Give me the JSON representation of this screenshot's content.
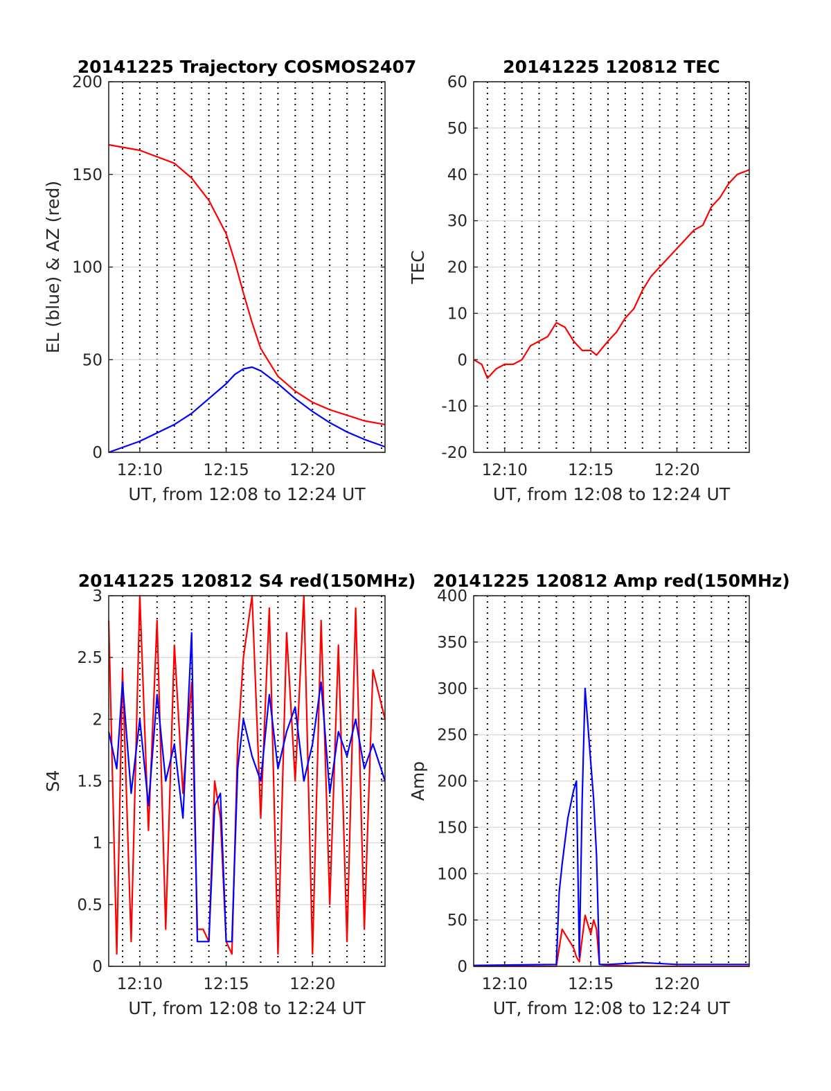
{
  "chart_data": [
    {
      "type": "line",
      "title": "20141225 Trajectory COSMOS2407",
      "xlabel": "UT, from 12:08 to 12:24 UT",
      "ylabel": "EL (blue) & AZ (red)",
      "xlim": [
        "12:08:12",
        "12:24:12"
      ],
      "ylim": [
        0,
        200
      ],
      "xticks": [
        "12:10",
        "12:15",
        "12:20"
      ],
      "yticks": [
        0,
        50,
        100,
        150,
        200
      ],
      "grid": true,
      "x": [
        "12:08:12",
        "12:10",
        "12:12",
        "12:13",
        "12:14",
        "12:15",
        "12:15:30",
        "12:16",
        "12:16:30",
        "12:17",
        "12:18",
        "12:19",
        "12:20",
        "12:21",
        "12:22",
        "12:23",
        "12:24:12"
      ],
      "series": [
        {
          "color": "#ff0000",
          "values": [
            166,
            163,
            156,
            148,
            136,
            118,
            103,
            86,
            70,
            56,
            41,
            33,
            27,
            23,
            20,
            17,
            15
          ]
        },
        {
          "color": "#0000ff",
          "values": [
            0,
            6,
            15,
            21,
            29,
            37,
            42,
            45,
            46,
            44,
            37,
            29,
            22,
            16,
            11,
            7,
            3
          ]
        }
      ]
    },
    {
      "type": "line",
      "title": "20141225 120812 TEC",
      "xlabel": "UT, from 12:08 to 12:24 UT",
      "ylabel": "TEC",
      "xlim": [
        "12:08:12",
        "12:24:12"
      ],
      "ylim": [
        -20,
        60
      ],
      "xticks": [
        "12:10",
        "12:15",
        "12:20"
      ],
      "yticks": [
        -20,
        -10,
        0,
        10,
        20,
        30,
        40,
        50,
        60
      ],
      "grid": true,
      "x": [
        "12:08:12",
        "12:08:40",
        "12:09",
        "12:09:30",
        "12:10",
        "12:10:30",
        "12:11",
        "12:11:30",
        "12:12",
        "12:12:30",
        "12:13",
        "12:13:30",
        "12:14",
        "12:14:30",
        "12:15",
        "12:15:20",
        "12:16",
        "12:16:30",
        "12:17",
        "12:17:30",
        "12:18",
        "12:18:30",
        "12:19",
        "12:19:30",
        "12:20",
        "12:20:30",
        "12:21",
        "12:21:30",
        "12:22",
        "12:22:30",
        "12:23",
        "12:23:30",
        "12:24:12"
      ],
      "series": [
        {
          "color": "#ff0000",
          "values": [
            0,
            -1,
            -4,
            -2,
            -1,
            -1,
            0,
            3,
            4,
            5,
            8,
            7,
            4,
            2,
            2,
            1,
            4,
            6,
            9,
            11,
            15,
            18,
            20,
            22,
            24,
            26,
            28,
            29,
            33,
            35,
            38,
            40,
            41
          ]
        }
      ]
    },
    {
      "type": "line",
      "title": "20141225 120812 S4 red(150MHz)",
      "xlabel": "UT, from 12:08 to 12:24 UT",
      "ylabel": "S4",
      "xlim": [
        "12:08:12",
        "12:24:12"
      ],
      "ylim": [
        0,
        3
      ],
      "xticks": [
        "12:10",
        "12:15",
        "12:20"
      ],
      "yticks": [
        0,
        0.5,
        1,
        1.5,
        2,
        2.5,
        3
      ],
      "grid": true,
      "x": [
        "12:08:12",
        "12:08:40",
        "12:09",
        "12:09:30",
        "12:10",
        "12:10:30",
        "12:11",
        "12:11:30",
        "12:12",
        "12:12:30",
        "12:13",
        "12:13:20",
        "12:13:40",
        "12:14",
        "12:14:20",
        "12:14:40",
        "12:15",
        "12:15:20",
        "12:15:40",
        "12:16",
        "12:16:30",
        "12:17",
        "12:17:30",
        "12:18",
        "12:18:30",
        "12:19",
        "12:19:30",
        "12:20",
        "12:20:30",
        "12:21",
        "12:21:30",
        "12:22",
        "12:22:30",
        "12:23",
        "12:23:30",
        "12:24:12"
      ],
      "series": [
        {
          "color": "#ff0000",
          "values": [
            2.8,
            0.1,
            2.4,
            0.2,
            3.0,
            1.1,
            2.8,
            0.3,
            2.6,
            1.4,
            2.3,
            0.3,
            0.3,
            0.2,
            1.5,
            1.2,
            0.2,
            0.1,
            1.8,
            2.5,
            3.0,
            1.2,
            2.9,
            0.1,
            2.7,
            1.5,
            3.0,
            0.1,
            2.8,
            0.5,
            2.6,
            0.2,
            2.9,
            0.3,
            2.4,
            2.0
          ]
        },
        {
          "color": "#0000ff",
          "values": [
            1.9,
            1.6,
            2.3,
            1.4,
            2.0,
            1.3,
            2.2,
            1.5,
            1.8,
            1.2,
            2.7,
            0.2,
            0.2,
            0.2,
            1.3,
            1.4,
            0.2,
            0.2,
            1.6,
            2.0,
            1.7,
            1.5,
            2.2,
            1.6,
            1.9,
            2.1,
            1.5,
            1.8,
            2.3,
            1.4,
            1.9,
            1.7,
            2.0,
            1.6,
            1.8,
            1.5
          ]
        }
      ]
    },
    {
      "type": "line",
      "title": "20141225 120812 Amp red(150MHz)",
      "xlabel": "UT, from 12:08 to 12:24 UT",
      "ylabel": "Amp",
      "xlim": [
        "12:08:12",
        "12:24:12"
      ],
      "ylim": [
        0,
        400
      ],
      "xticks": [
        "12:10",
        "12:15",
        "12:20"
      ],
      "yticks": [
        0,
        50,
        100,
        150,
        200,
        250,
        300,
        350,
        400
      ],
      "grid": true,
      "x": [
        "12:08:12",
        "12:13",
        "12:13:10",
        "12:13:20",
        "12:13:40",
        "12:14",
        "12:14:10",
        "12:14:20",
        "12:14:30",
        "12:14:40",
        "12:14:50",
        "12:15",
        "12:15:10",
        "12:15:20",
        "12:15:30",
        "12:16",
        "12:18",
        "12:20",
        "12:24:12"
      ],
      "series": [
        {
          "color": "#ff0000",
          "values": [
            0,
            0,
            20,
            40,
            30,
            20,
            10,
            5,
            30,
            55,
            45,
            35,
            50,
            40,
            2,
            1,
            0,
            0,
            0
          ]
        },
        {
          "color": "#0000ff",
          "values": [
            1,
            2,
            80,
            110,
            160,
            190,
            200,
            10,
            180,
            300,
            260,
            220,
            180,
            120,
            2,
            2,
            4,
            2,
            2
          ]
        }
      ]
    }
  ]
}
